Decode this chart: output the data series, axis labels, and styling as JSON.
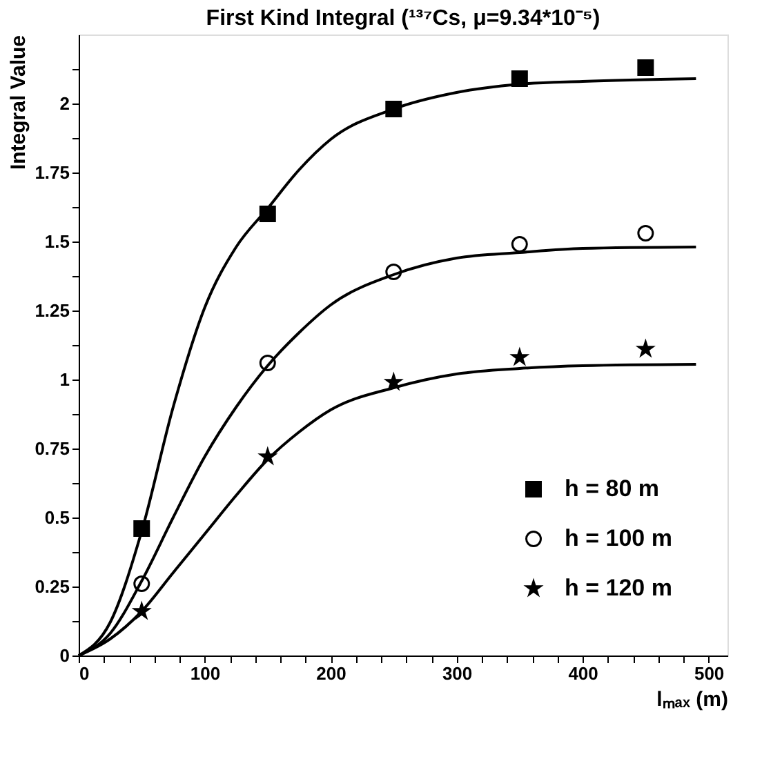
{
  "chart_data": {
    "type": "scatter",
    "title": "First Kind Integral (¹³⁷Cs, μ=9.34*10⁻⁵)",
    "xlabel": "lₘₐₓ (m)",
    "ylabel": "Integral Value",
    "x": [
      50,
      150,
      250,
      350,
      450
    ],
    "series": [
      {
        "name": "h = 80 m",
        "marker": "square",
        "color": "#000000",
        "values": [
          0.46,
          1.6,
          1.98,
          2.09,
          2.13
        ]
      },
      {
        "name": "h = 100 m",
        "marker": "circle",
        "color": "#000000",
        "values": [
          0.26,
          1.06,
          1.39,
          1.49,
          1.53
        ]
      },
      {
        "name": "h = 120 m",
        "marker": "star",
        "color": "#000000",
        "values": [
          0.16,
          0.72,
          0.99,
          1.08,
          1.11
        ]
      },
      {
        "type": "line",
        "color": "#000000",
        "x": [
          0,
          25,
          50,
          75,
          100,
          125,
          150,
          175,
          200,
          250,
          300,
          350,
          400,
          490
        ],
        "values": [
          0,
          0.12,
          0.45,
          0.9,
          1.26,
          1.48,
          1.62,
          1.76,
          1.87,
          1.98,
          2.04,
          2.07,
          2.08,
          2.09
        ]
      },
      {
        "type": "line",
        "color": "#000000",
        "x": [
          0,
          25,
          50,
          75,
          100,
          125,
          150,
          175,
          200,
          250,
          300,
          350,
          400,
          490
        ],
        "values": [
          0,
          0.08,
          0.27,
          0.5,
          0.72,
          0.9,
          1.05,
          1.17,
          1.27,
          1.38,
          1.44,
          1.46,
          1.475,
          1.48
        ]
      },
      {
        "type": "line",
        "color": "#000000",
        "x": [
          0,
          25,
          50,
          75,
          100,
          125,
          150,
          175,
          200,
          250,
          300,
          350,
          400,
          490
        ],
        "values": [
          0,
          0.06,
          0.16,
          0.3,
          0.44,
          0.58,
          0.71,
          0.81,
          0.89,
          0.97,
          1.02,
          1.04,
          1.05,
          1.055
        ]
      }
    ],
    "xlim": [
      0,
      515
    ],
    "ylim": [
      0,
      2.25
    ],
    "xticks": [
      0,
      {
        "value": 20,
        "label": null
      },
      {
        "value": 40,
        "label": null
      },
      {
        "value": 60,
        "label": null
      },
      {
        "value": 80,
        "label": null
      },
      100,
      {
        "value": 120,
        "label": null
      },
      {
        "value": 140,
        "label": null
      },
      {
        "value": 160,
        "label": null
      },
      {
        "value": 180,
        "label": null
      },
      200,
      {
        "value": 220,
        "label": null
      },
      {
        "value": 240,
        "label": null
      },
      {
        "value": 260,
        "label": null
      },
      {
        "value": 280,
        "label": null
      },
      300,
      {
        "value": 320,
        "label": null
      },
      {
        "value": 340,
        "label": null
      },
      {
        "value": 360,
        "label": null
      },
      {
        "value": 380,
        "label": null
      },
      400,
      {
        "value": 420,
        "label": null
      },
      {
        "value": 440,
        "label": null
      },
      {
        "value": 460,
        "label": null
      },
      {
        "value": 480,
        "label": null
      },
      500
    ],
    "yticks": [
      0,
      {
        "value": 0.125,
        "label": null
      },
      0.25,
      {
        "value": 0.375,
        "label": null
      },
      0.5,
      {
        "value": 0.625,
        "label": null
      },
      0.75,
      {
        "value": 0.875,
        "label": null
      },
      1,
      {
        "value": 1.125,
        "label": null
      },
      1.25,
      {
        "value": 1.375,
        "label": null
      },
      1.5,
      {
        "value": 1.625,
        "label": null
      },
      1.75,
      {
        "value": 1.875,
        "label": null
      },
      2,
      {
        "value": 2.125,
        "label": null
      }
    ],
    "grid": false,
    "legend": "bottom right",
    "line_style": "solid"
  }
}
